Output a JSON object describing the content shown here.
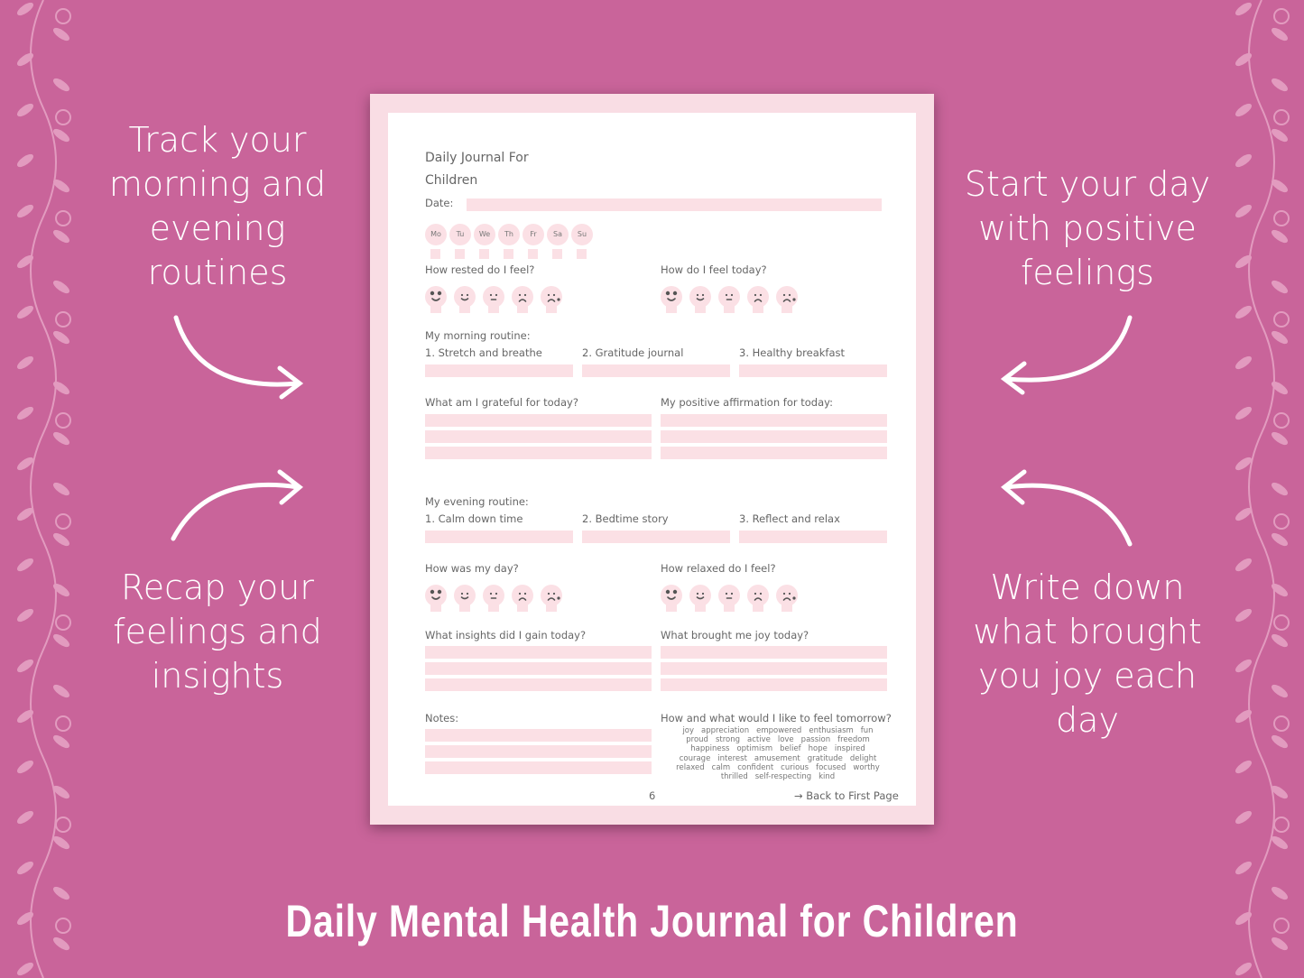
{
  "colors": {
    "background": "#c9649a",
    "accent": "#fbe0e5",
    "page_border": "#f9dde4"
  },
  "side_text": {
    "top_left": "Track your morning and evening routines",
    "bottom_left": "Recap your feelings and insights",
    "top_right": "Start your day with positive feelings",
    "bottom_right": "Write down what brought you joy each day"
  },
  "footer_title": "Daily Mental Health Journal for Children",
  "journal": {
    "title_line1": "Daily Journal For",
    "title_line2": "Children",
    "date_label": "Date:",
    "days": [
      "Mo",
      "Tu",
      "We",
      "Th",
      "Fr",
      "Sa",
      "Su"
    ],
    "faces": [
      "heart-eyes-face",
      "smile-face",
      "neutral-face",
      "sad-face",
      "crying-face"
    ],
    "rested_label": "How rested do I feel?",
    "feel_today_label": "How do I feel today?",
    "morning_label": "My morning routine:",
    "morning_items": [
      "1. Stretch and breathe",
      "2. Gratitude journal",
      "3. Healthy breakfast"
    ],
    "grateful_label": "What am I grateful for today?",
    "affirmation_label": "My positive affirmation for today:",
    "evening_label": "My evening routine:",
    "evening_items": [
      "1. Calm down time",
      "2. Bedtime story",
      "3. Reflect and relax"
    ],
    "day_label": "How was my day?",
    "relaxed_label": "How relaxed do I feel?",
    "insights_label": "What insights did I gain today?",
    "joy_label": "What brought me joy today?",
    "notes_label": "Notes:",
    "tomorrow_label": "How and what would I like to feel tomorrow?",
    "feeling_words": [
      [
        "joy",
        "appreciation",
        "empowered",
        "enthusiasm",
        "fun"
      ],
      [
        "proud",
        "strong",
        "active",
        "love",
        "passion",
        "freedom"
      ],
      [
        "happiness",
        "optimism",
        "belief",
        "hope",
        "inspired"
      ],
      [
        "courage",
        "interest",
        "amusement",
        "gratitude",
        "delight"
      ],
      [
        "relaxed",
        "calm",
        "confident",
        "curious",
        "focused",
        "worthy"
      ],
      [
        "thrilled",
        "self-respecting",
        "kind"
      ]
    ],
    "page_number": "6",
    "back_link": "→ Back to First Page"
  }
}
